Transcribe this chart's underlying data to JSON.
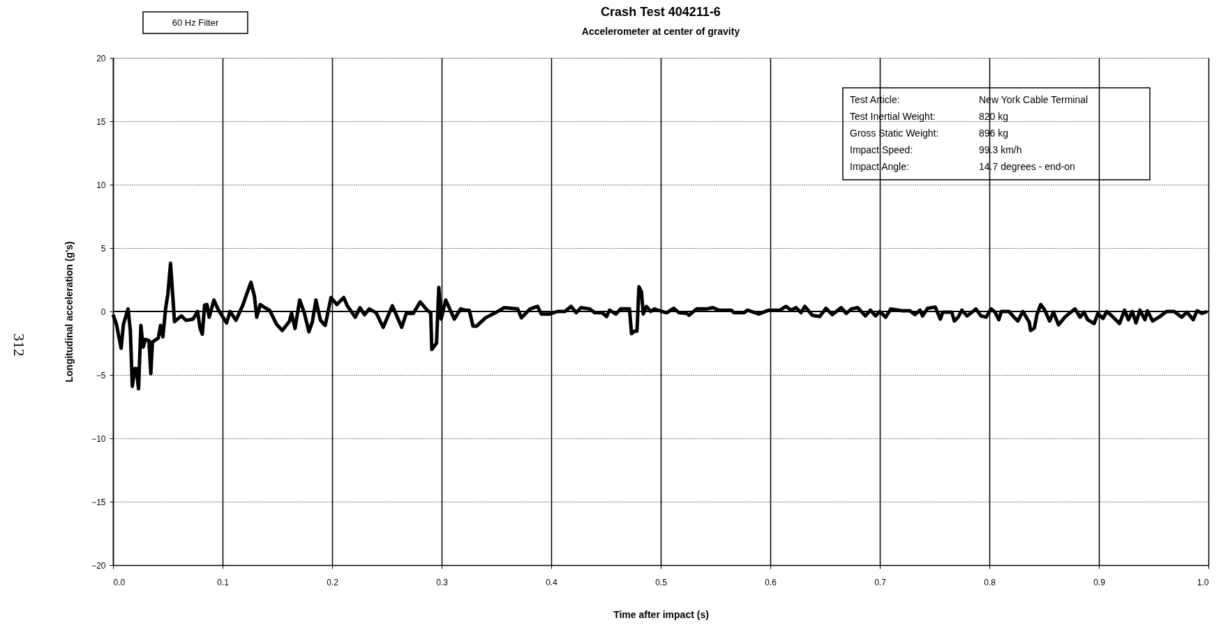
{
  "chart_data": {
    "type": "line",
    "title": "Crash Test 404211-6",
    "subtitle": "Accelerometer at center of gravity",
    "xlabel": "Time after impact (s)",
    "ylabel": "Longitudinal acceleration (g's)",
    "xlim": [
      0,
      1
    ],
    "ylim": [
      -20,
      20
    ],
    "xticks": [
      {
        "value": 0,
        "label": "0.0"
      },
      0.1,
      0.2,
      0.3,
      0.4,
      0.5,
      0.6,
      0.7,
      0.8,
      0.9,
      {
        "value": 1,
        "label": "1.0"
      }
    ],
    "yticks": [
      -20,
      -15,
      -10,
      -5,
      0,
      5,
      10,
      15,
      20
    ],
    "grid": true,
    "marker": "none",
    "line_style": "solid",
    "ref_lines": [
      {
        "axis": "y",
        "value": 0
      }
    ],
    "annotations": [
      "60 Hz Filter",
      "312",
      "Test Article:",
      "New York Cable Terminal",
      "Test Inertial Weight:",
      "820 kg",
      "Gross Static Weight:",
      "896 kg",
      "Impact Speed:",
      "99.3 km/h",
      "Impact Angle:",
      "14.7 degrees - end-on"
    ],
    "series": [
      {
        "color": "#000000",
        "x": [
          0.0,
          0.0031,
          0.0074,
          0.0095,
          0.0137,
          0.0158,
          0.0176,
          0.0197,
          0.0212,
          0.0233,
          0.0254,
          0.0275,
          0.0296,
          0.0328,
          0.0345,
          0.036,
          0.0413,
          0.0434,
          0.0455,
          0.0481,
          0.0501,
          0.0525,
          0.0544,
          0.0561,
          0.0624,
          0.0667,
          0.073,
          0.0772,
          0.0794,
          0.0815,
          0.0836,
          0.0857,
          0.0878,
          0.0921,
          0.0963,
          0.1037,
          0.1069,
          0.1122,
          0.1185,
          0.1217,
          0.1259,
          0.1291,
          0.1312,
          0.1344,
          0.1386,
          0.1429,
          0.1492,
          0.1545,
          0.1609,
          0.163,
          0.1661,
          0.1704,
          0.1746,
          0.1788,
          0.182,
          0.1852,
          0.1894,
          0.1937,
          0.199,
          0.2043,
          0.2106,
          0.2138,
          0.2212,
          0.2254,
          0.2296,
          0.2339,
          0.2402,
          0.2466,
          0.255,
          0.2635,
          0.2677,
          0.2741,
          0.2804,
          0.2868,
          0.29,
          0.291,
          0.2953,
          0.2974,
          0.2995,
          0.3037,
          0.3116,
          0.3173,
          0.3218,
          0.3252,
          0.3286,
          0.332,
          0.34,
          0.349,
          0.357,
          0.3694,
          0.3728,
          0.3808,
          0.3875,
          0.391,
          0.3989,
          0.4057,
          0.4125,
          0.4182,
          0.4227,
          0.4272,
          0.4352,
          0.4397,
          0.4465,
          0.4506,
          0.4533,
          0.459,
          0.4635,
          0.4715,
          0.4733,
          0.476,
          0.4783,
          0.4801,
          0.4824,
          0.484,
          0.4869,
          0.4908,
          0.4942,
          0.501,
          0.5055,
          0.5118,
          0.5168,
          0.5236,
          0.5259,
          0.5327,
          0.5418,
          0.5475,
          0.5531,
          0.5645,
          0.5668,
          0.5759,
          0.5793,
          0.5895,
          0.5986,
          0.6088,
          0.6144,
          0.619,
          0.6235,
          0.6281,
          0.6315,
          0.6383,
          0.6451,
          0.6508,
          0.6566,
          0.6647,
          0.6694,
          0.674,
          0.6798,
          0.6868,
          0.6914,
          0.6961,
          0.7,
          0.7053,
          0.71,
          0.7204,
          0.7274,
          0.732,
          0.7367,
          0.739,
          0.7436,
          0.7506,
          0.7552,
          0.7575,
          0.7656,
          0.768,
          0.7715,
          0.7749,
          0.7796,
          0.7842,
          0.7877,
          0.7923,
          0.797,
          0.8016,
          0.8051,
          0.8086,
          0.8109,
          0.8179,
          0.8225,
          0.826,
          0.8306,
          0.8364,
          0.8376,
          0.8411,
          0.8434,
          0.8469,
          0.8503,
          0.855,
          0.8585,
          0.8631,
          0.8689,
          0.8759,
          0.8782,
          0.8828,
          0.8863,
          0.8898,
          0.8956,
          0.8991,
          0.9037,
          0.9072,
          0.913,
          0.9188,
          0.9234,
          0.9269,
          0.9304,
          0.9339,
          0.9374,
          0.942,
          0.9443,
          0.949,
          0.9548,
          0.9617,
          0.9687,
          0.9756,
          0.9803,
          0.9861,
          0.9896,
          0.9942,
          0.9988
        ],
        "values": [
          -0.25,
          -1.0,
          -2.9,
          -1.0,
          0.2,
          -1.5,
          -5.9,
          -4.5,
          -4.5,
          -6.1,
          -1.1,
          -2.8,
          -2.2,
          -2.3,
          -4.9,
          -2.4,
          -2.1,
          -1.1,
          -2.0,
          0.3,
          1.4,
          3.8,
          1.4,
          -0.8,
          -0.35,
          -0.7,
          -0.6,
          0.0,
          -1.3,
          -1.8,
          0.5,
          0.55,
          -0.45,
          0.9,
          0.1,
          -0.9,
          0.0,
          -0.7,
          0.5,
          1.3,
          2.3,
          1.2,
          -0.45,
          0.55,
          0.3,
          0.1,
          -1.0,
          -1.5,
          -0.8,
          -0.15,
          -1.35,
          0.9,
          -0.1,
          -1.6,
          -0.8,
          0.9,
          -0.7,
          -1.1,
          1.1,
          0.55,
          1.1,
          0.45,
          -0.45,
          0.3,
          -0.25,
          0.2,
          -0.1,
          -1.25,
          0.45,
          -1.25,
          -0.15,
          -0.15,
          0.75,
          0.1,
          -0.1,
          -3.0,
          -2.5,
          1.9,
          -0.6,
          0.9,
          -0.6,
          0.2,
          0.1,
          0.1,
          -1.15,
          -1.15,
          -0.5,
          -0.1,
          0.3,
          0.2,
          -0.5,
          0.2,
          0.4,
          -0.2,
          -0.2,
          0.0,
          0.0,
          0.4,
          -0.1,
          0.3,
          0.2,
          -0.1,
          -0.1,
          -0.4,
          0.1,
          -0.2,
          0.2,
          0.2,
          -1.75,
          -1.55,
          -1.55,
          1.95,
          1.55,
          -0.2,
          0.4,
          0.0,
          0.2,
          0.0,
          -0.1,
          0.25,
          -0.1,
          -0.15,
          -0.3,
          0.2,
          0.2,
          0.3,
          0.1,
          0.1,
          -0.1,
          -0.1,
          0.1,
          -0.2,
          0.1,
          0.1,
          0.4,
          0.1,
          0.3,
          -0.1,
          0.4,
          -0.3,
          -0.4,
          0.25,
          -0.25,
          0.3,
          -0.15,
          0.2,
          0.3,
          -0.35,
          0.1,
          -0.35,
          0.0,
          -0.45,
          0.2,
          0.05,
          0.05,
          -0.25,
          0.1,
          -0.35,
          0.25,
          0.35,
          -0.6,
          -0.05,
          -0.05,
          -0.75,
          -0.45,
          0.1,
          -0.35,
          -0.05,
          0.2,
          -0.35,
          -0.45,
          0.2,
          -0.05,
          -0.65,
          0.0,
          0.0,
          -0.45,
          -0.75,
          0.0,
          -0.85,
          -1.5,
          -1.3,
          -0.25,
          0.55,
          0.15,
          -0.75,
          -0.05,
          -1.05,
          -0.45,
          0.05,
          0.2,
          -0.45,
          -0.05,
          -0.65,
          -0.95,
          -0.15,
          -0.55,
          0.0,
          -0.45,
          -0.95,
          0.1,
          -0.65,
          0.0,
          -0.9,
          0.1,
          -0.65,
          0.05,
          -0.75,
          -0.45,
          0.0,
          0.0,
          -0.45,
          -0.05,
          -0.65,
          0.05,
          -0.15,
          0.0
        ]
      }
    ]
  }
}
